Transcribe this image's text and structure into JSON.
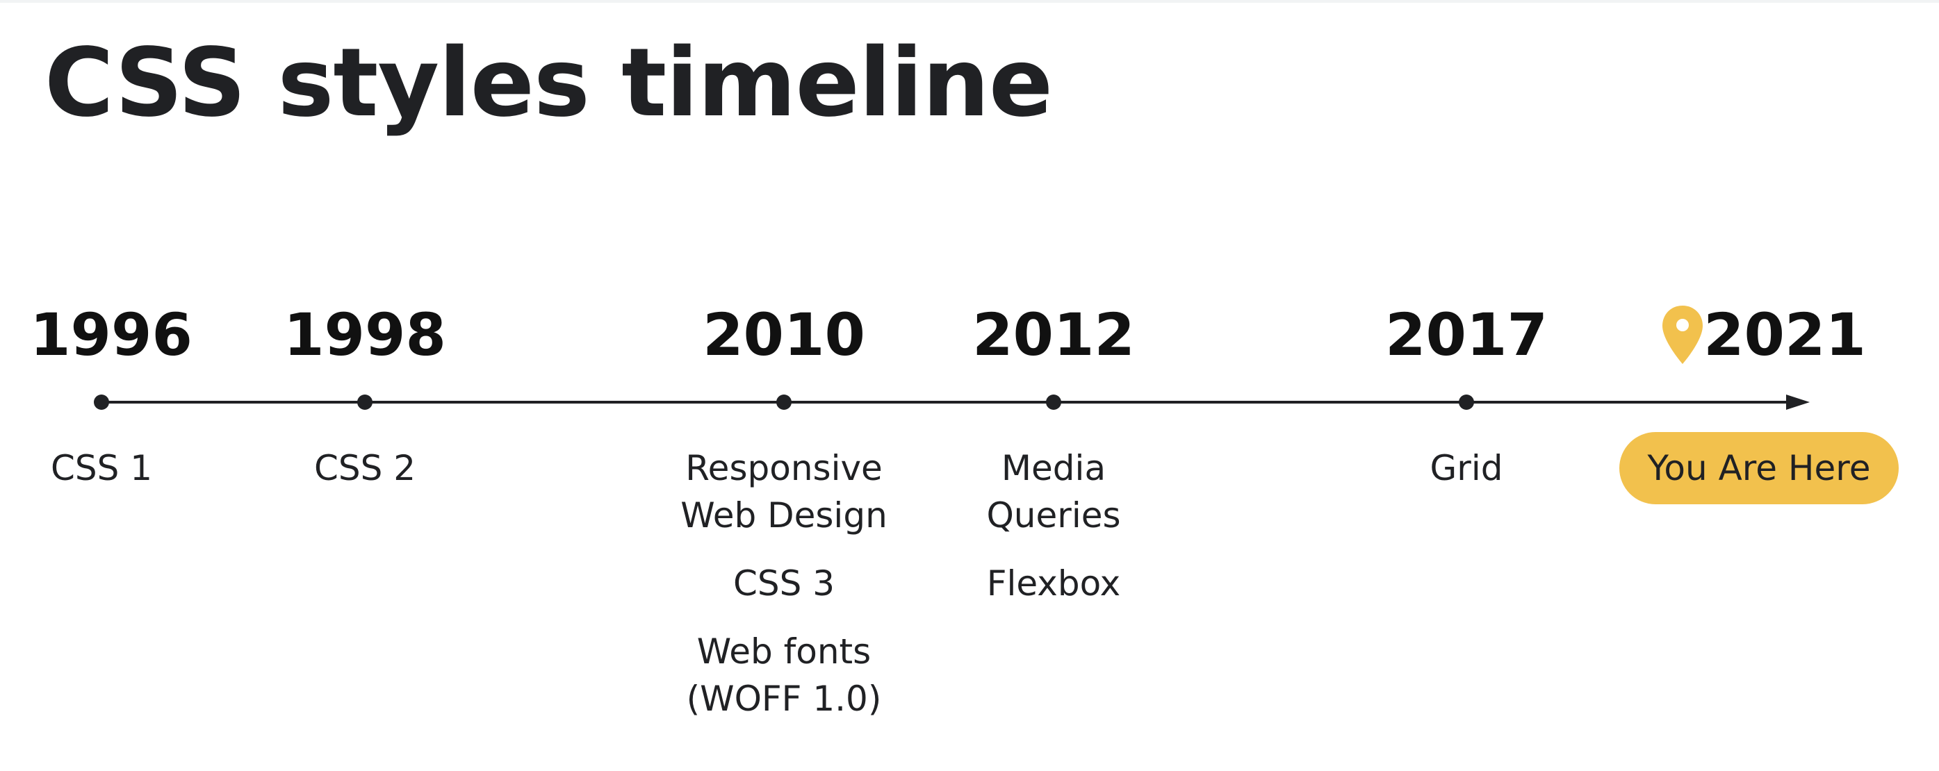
{
  "title": "CSS styles timeline",
  "colors": {
    "line": "#202124",
    "highlight": "#f2c14d"
  },
  "timeline": [
    {
      "year": "1996",
      "events": [
        {
          "lines": [
            "CSS 1"
          ]
        }
      ]
    },
    {
      "year": "1998",
      "events": [
        {
          "lines": [
            "CSS 2"
          ]
        }
      ]
    },
    {
      "year": "2010",
      "events": [
        {
          "lines": [
            "Responsive",
            "Web Design"
          ]
        },
        {
          "lines": [
            "CSS 3"
          ]
        },
        {
          "lines": [
            "Web fonts",
            "(WOFF 1.0)"
          ]
        }
      ]
    },
    {
      "year": "2012",
      "events": [
        {
          "lines": [
            "Media",
            "Queries"
          ]
        },
        {
          "lines": [
            "Flexbox"
          ]
        }
      ]
    },
    {
      "year": "2017",
      "events": [
        {
          "lines": [
            "Grid"
          ]
        }
      ]
    },
    {
      "year": "2021",
      "icon": "location-pin-icon",
      "badge": "You Are Here"
    }
  ]
}
